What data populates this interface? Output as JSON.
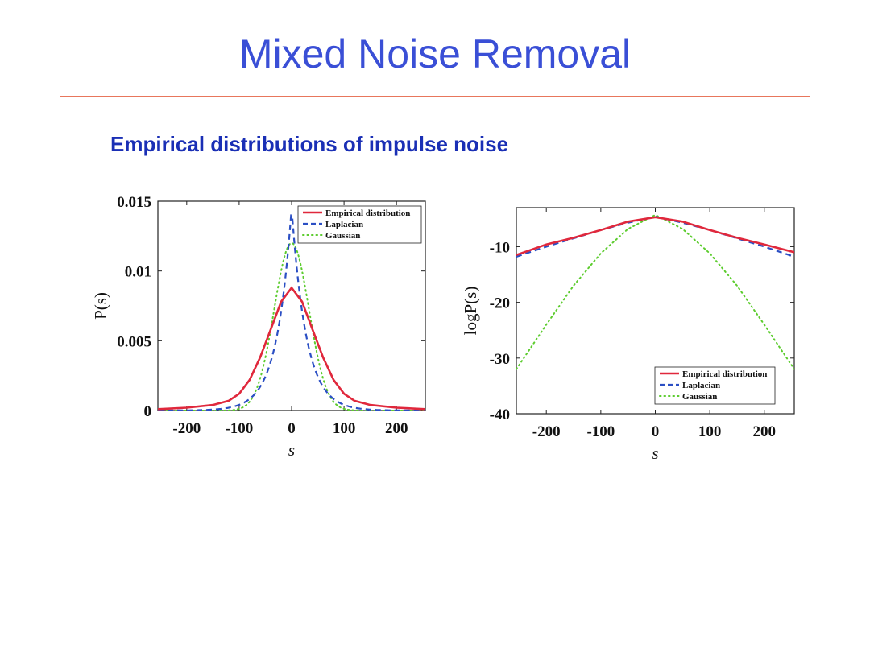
{
  "slide": {
    "title": "Mixed Noise Removal",
    "subtitle": "Empirical distributions of impulse noise",
    "title_color": "#3a4fd6",
    "subtitle_color": "#1a2fb5",
    "rule_color": "#e8765c"
  },
  "colors": {
    "empirical": "#e0283c",
    "laplacian": "#2b4fc4",
    "gaussian": "#5ccc2e"
  },
  "chart_data": [
    {
      "type": "line",
      "xlabel": "s",
      "ylabel": "P(s)",
      "xlim": [
        -255,
        255
      ],
      "ylim": [
        0,
        0.015
      ],
      "xticks": [
        -200,
        -100,
        0,
        100,
        200
      ],
      "yticks": [
        0,
        0.005,
        0.01,
        0.015
      ],
      "ytick_labels": [
        "0",
        "0.005",
        "0.01",
        "0.015"
      ],
      "legend_position": "top-right",
      "series": [
        {
          "name": "Empirical distribution",
          "style": "solid",
          "x": [
            -255,
            -200,
            -150,
            -120,
            -100,
            -80,
            -60,
            -40,
            -20,
            0,
            20,
            40,
            60,
            80,
            100,
            120,
            150,
            200,
            255
          ],
          "y": [
            0.0001,
            0.0002,
            0.0004,
            0.0007,
            0.0012,
            0.0022,
            0.0038,
            0.0058,
            0.0078,
            0.0088,
            0.0078,
            0.0058,
            0.0038,
            0.0022,
            0.0012,
            0.0007,
            0.0004,
            0.0002,
            0.0001
          ]
        },
        {
          "name": "Laplacian",
          "style": "dashed",
          "scale": 28,
          "amplitude": 0.0145,
          "x_min": -255,
          "x_max": 255
        },
        {
          "name": "Gaussian",
          "style": "dotted",
          "sigma": 33,
          "amplitude": 0.012,
          "x_min": -255,
          "x_max": 255
        }
      ]
    },
    {
      "type": "line",
      "xlabel": "s",
      "ylabel": "logP(s)",
      "xlim": [
        -255,
        255
      ],
      "ylim": [
        -40,
        -3
      ],
      "xticks": [
        -200,
        -100,
        0,
        100,
        200
      ],
      "yticks": [
        -40,
        -30,
        -20,
        -10
      ],
      "legend_position": "bottom-right",
      "series": [
        {
          "name": "Empirical distribution",
          "style": "solid",
          "x": [
            -255,
            -200,
            -150,
            -100,
            -50,
            0,
            50,
            100,
            150,
            200,
            255
          ],
          "y": [
            -11.5,
            -9.6,
            -8.4,
            -7.0,
            -5.5,
            -4.7,
            -5.5,
            -7.0,
            -8.4,
            -9.6,
            -11.0
          ]
        },
        {
          "name": "Laplacian",
          "style": "dashed",
          "x": [
            -255,
            -200,
            -150,
            -100,
            -50,
            0,
            50,
            100,
            150,
            200,
            255
          ],
          "y": [
            -11.8,
            -10.0,
            -8.5,
            -7.0,
            -5.7,
            -4.6,
            -5.7,
            -7.0,
            -8.5,
            -10.0,
            -11.8
          ]
        },
        {
          "name": "Gaussian",
          "style": "dotted",
          "x": [
            -255,
            -200,
            -150,
            -100,
            -50,
            0,
            50,
            100,
            150,
            200,
            255
          ],
          "y": [
            -32.0,
            -24.0,
            -17.0,
            -11.2,
            -6.8,
            -4.3,
            -6.8,
            -11.2,
            -17.0,
            -24.0,
            -32.0
          ]
        }
      ]
    }
  ]
}
